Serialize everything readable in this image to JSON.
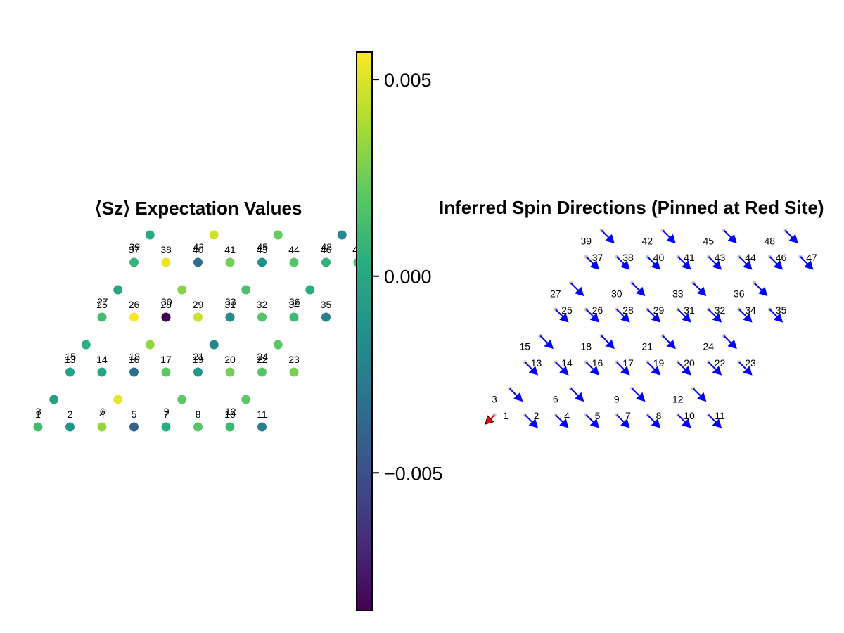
{
  "chart_data": [
    {
      "type": "scatter",
      "title": "⟨Sz⟩ Expectation Values",
      "colormap": "viridis",
      "color_range": [
        -0.0085,
        0.0056
      ],
      "sites": [
        {
          "id": 1,
          "x": 0,
          "y": 0,
          "sz": 0.0012
        },
        {
          "id": 2,
          "x": 1,
          "y": 0,
          "sz": -0.0012
        },
        {
          "id": 3,
          "x": 0.5,
          "y": 1,
          "sz": -0.0004
        },
        {
          "id": 4,
          "x": 2,
          "y": 0,
          "sz": 0.0033
        },
        {
          "id": 5,
          "x": 3,
          "y": 0,
          "sz": -0.0042
        },
        {
          "id": 6,
          "x": 2.5,
          "y": 1,
          "sz": 0.0052
        },
        {
          "id": 7,
          "x": 4,
          "y": 0,
          "sz": 0.0002
        },
        {
          "id": 8,
          "x": 5,
          "y": 0,
          "sz": 0.0018
        },
        {
          "id": 9,
          "x": 4.5,
          "y": 1,
          "sz": 0.002
        },
        {
          "id": 10,
          "x": 6,
          "y": 0,
          "sz": 0.001
        },
        {
          "id": 11,
          "x": 7,
          "y": 0,
          "sz": -0.0025
        },
        {
          "id": 12,
          "x": 6.5,
          "y": 1,
          "sz": 0.002
        },
        {
          "id": 13,
          "x": 1,
          "y": 2,
          "sz": -0.0003
        },
        {
          "id": 14,
          "x": 2,
          "y": 2,
          "sz": -0.0002
        },
        {
          "id": 15,
          "x": 1.5,
          "y": 3,
          "sz": 0.0004
        },
        {
          "id": 16,
          "x": 3,
          "y": 2,
          "sz": -0.0033
        },
        {
          "id": 17,
          "x": 4,
          "y": 2,
          "sz": 0.002
        },
        {
          "id": 18,
          "x": 3.5,
          "y": 3,
          "sz": 0.0032
        },
        {
          "id": 19,
          "x": 5,
          "y": 2,
          "sz": -0.001
        },
        {
          "id": 20,
          "x": 6,
          "y": 2,
          "sz": 0.0025
        },
        {
          "id": 21,
          "x": 5.5,
          "y": 3,
          "sz": -0.002
        },
        {
          "id": 22,
          "x": 7,
          "y": 2,
          "sz": 0.0018
        },
        {
          "id": 23,
          "x": 8,
          "y": 2,
          "sz": 0.0026
        },
        {
          "id": 24,
          "x": 7.5,
          "y": 3,
          "sz": 0.002
        },
        {
          "id": 25,
          "x": 2,
          "y": 4,
          "sz": 0.0012
        },
        {
          "id": 26,
          "x": 3,
          "y": 4,
          "sz": 0.0056
        },
        {
          "id": 27,
          "x": 2.5,
          "y": 5,
          "sz": -0.0002
        },
        {
          "id": 28,
          "x": 4,
          "y": 4,
          "sz": -0.0085
        },
        {
          "id": 29,
          "x": 5,
          "y": 4,
          "sz": 0.0045
        },
        {
          "id": 30,
          "x": 4.5,
          "y": 5,
          "sz": 0.003
        },
        {
          "id": 31,
          "x": 6,
          "y": 4,
          "sz": -0.0018
        },
        {
          "id": 32,
          "x": 7,
          "y": 4,
          "sz": 0.0018
        },
        {
          "id": 33,
          "x": 6.5,
          "y": 5,
          "sz": 0.0015
        },
        {
          "id": 34,
          "x": 8,
          "y": 4,
          "sz": 0.001
        },
        {
          "id": 35,
          "x": 9,
          "y": 4,
          "sz": -0.0025
        },
        {
          "id": 36,
          "x": 8.5,
          "y": 5,
          "sz": 0.0002
        },
        {
          "id": 37,
          "x": 3,
          "y": 6,
          "sz": 0.0008
        },
        {
          "id": 38,
          "x": 4,
          "y": 6,
          "sz": 0.0052
        },
        {
          "id": 39,
          "x": 3.5,
          "y": 7,
          "sz": 0.0
        },
        {
          "id": 40,
          "x": 5,
          "y": 6,
          "sz": -0.0035
        },
        {
          "id": 41,
          "x": 6,
          "y": 6,
          "sz": 0.0025
        },
        {
          "id": 42,
          "x": 5.5,
          "y": 7,
          "sz": 0.0046
        },
        {
          "id": 43,
          "x": 7,
          "y": 6,
          "sz": -0.0015
        },
        {
          "id": 44,
          "x": 8,
          "y": 6,
          "sz": 0.0018
        },
        {
          "id": 45,
          "x": 7.5,
          "y": 7,
          "sz": 0.0022
        },
        {
          "id": 46,
          "x": 9,
          "y": 6,
          "sz": 0.0006
        },
        {
          "id": 47,
          "x": 10,
          "y": 6,
          "sz": 0.0012
        },
        {
          "id": 48,
          "x": 9.5,
          "y": 7,
          "sz": -0.002
        }
      ]
    },
    {
      "type": "colorbar",
      "colormap": "viridis",
      "range": [
        -0.0085,
        0.0057
      ],
      "ticks": [
        0.005,
        0.0,
        -0.005
      ],
      "tick_labels": [
        "0.005",
        "0.000",
        "−0.005"
      ]
    },
    {
      "type": "quiver",
      "title": "Inferred Spin Directions (Pinned at Red Site)",
      "pinned_site": 1,
      "pinned_color": "#ff0000",
      "arrow_color": "#0000ff",
      "site_color": "#c8c8c8",
      "arrows": [
        {
          "id": 1,
          "x": 0,
          "y": 0,
          "dx": -0.22,
          "dy": -0.22
        },
        {
          "id": 2,
          "x": 1,
          "y": 0,
          "dx": 0.3,
          "dy": -0.3
        },
        {
          "id": 3,
          "x": 0.5,
          "y": 1,
          "dx": 0.3,
          "dy": -0.3
        },
        {
          "id": 4,
          "x": 2,
          "y": 0,
          "dx": 0.3,
          "dy": -0.3
        },
        {
          "id": 5,
          "x": 3,
          "y": 0,
          "dx": 0.3,
          "dy": -0.3
        },
        {
          "id": 6,
          "x": 2.5,
          "y": 1,
          "dx": 0.3,
          "dy": -0.3
        },
        {
          "id": 7,
          "x": 4,
          "y": 0,
          "dx": 0.3,
          "dy": -0.3
        },
        {
          "id": 8,
          "x": 5,
          "y": 0,
          "dx": 0.3,
          "dy": -0.3
        },
        {
          "id": 9,
          "x": 4.5,
          "y": 1,
          "dx": 0.3,
          "dy": -0.3
        },
        {
          "id": 10,
          "x": 6,
          "y": 0,
          "dx": 0.3,
          "dy": -0.3
        },
        {
          "id": 11,
          "x": 7,
          "y": 0,
          "dx": 0.3,
          "dy": -0.3
        },
        {
          "id": 12,
          "x": 6.5,
          "y": 1,
          "dx": 0.3,
          "dy": -0.3
        },
        {
          "id": 13,
          "x": 1,
          "y": 2,
          "dx": 0.3,
          "dy": -0.3
        },
        {
          "id": 14,
          "x": 2,
          "y": 2,
          "dx": 0.3,
          "dy": -0.3
        },
        {
          "id": 15,
          "x": 1.5,
          "y": 3,
          "dx": 0.3,
          "dy": -0.3
        },
        {
          "id": 16,
          "x": 3,
          "y": 2,
          "dx": 0.3,
          "dy": -0.3
        },
        {
          "id": 17,
          "x": 4,
          "y": 2,
          "dx": 0.3,
          "dy": -0.3
        },
        {
          "id": 18,
          "x": 3.5,
          "y": 3,
          "dx": 0.3,
          "dy": -0.3
        },
        {
          "id": 19,
          "x": 5,
          "y": 2,
          "dx": 0.3,
          "dy": -0.3
        },
        {
          "id": 20,
          "x": 6,
          "y": 2,
          "dx": 0.3,
          "dy": -0.3
        },
        {
          "id": 21,
          "x": 5.5,
          "y": 3,
          "dx": 0.3,
          "dy": -0.3
        },
        {
          "id": 22,
          "x": 7,
          "y": 2,
          "dx": 0.3,
          "dy": -0.3
        },
        {
          "id": 23,
          "x": 8,
          "y": 2,
          "dx": 0.3,
          "dy": -0.3
        },
        {
          "id": 24,
          "x": 7.5,
          "y": 3,
          "dx": 0.3,
          "dy": -0.3
        },
        {
          "id": 25,
          "x": 2,
          "y": 4,
          "dx": 0.3,
          "dy": -0.3
        },
        {
          "id": 26,
          "x": 3,
          "y": 4,
          "dx": 0.3,
          "dy": -0.3
        },
        {
          "id": 27,
          "x": 2.5,
          "y": 5,
          "dx": 0.3,
          "dy": -0.3
        },
        {
          "id": 28,
          "x": 4,
          "y": 4,
          "dx": 0.3,
          "dy": -0.3
        },
        {
          "id": 29,
          "x": 5,
          "y": 4,
          "dx": 0.3,
          "dy": -0.3
        },
        {
          "id": 30,
          "x": 4.5,
          "y": 5,
          "dx": 0.3,
          "dy": -0.3
        },
        {
          "id": 31,
          "x": 6,
          "y": 4,
          "dx": 0.3,
          "dy": -0.3
        },
        {
          "id": 32,
          "x": 7,
          "y": 4,
          "dx": 0.3,
          "dy": -0.3
        },
        {
          "id": 33,
          "x": 6.5,
          "y": 5,
          "dx": 0.3,
          "dy": -0.3
        },
        {
          "id": 34,
          "x": 8,
          "y": 4,
          "dx": 0.3,
          "dy": -0.3
        },
        {
          "id": 35,
          "x": 9,
          "y": 4,
          "dx": 0.3,
          "dy": -0.3
        },
        {
          "id": 36,
          "x": 8.5,
          "y": 5,
          "dx": 0.3,
          "dy": -0.3
        },
        {
          "id": 37,
          "x": 3,
          "y": 6,
          "dx": 0.3,
          "dy": -0.3
        },
        {
          "id": 38,
          "x": 4,
          "y": 6,
          "dx": 0.3,
          "dy": -0.3
        },
        {
          "id": 39,
          "x": 3.5,
          "y": 7,
          "dx": 0.3,
          "dy": -0.3
        },
        {
          "id": 40,
          "x": 5,
          "y": 6,
          "dx": 0.3,
          "dy": -0.3
        },
        {
          "id": 41,
          "x": 6,
          "y": 6,
          "dx": 0.3,
          "dy": -0.3
        },
        {
          "id": 42,
          "x": 5.5,
          "y": 7,
          "dx": 0.3,
          "dy": -0.3
        },
        {
          "id": 43,
          "x": 7,
          "y": 6,
          "dx": 0.3,
          "dy": -0.3
        },
        {
          "id": 44,
          "x": 8,
          "y": 6,
          "dx": 0.3,
          "dy": -0.3
        },
        {
          "id": 45,
          "x": 7.5,
          "y": 7,
          "dx": 0.3,
          "dy": -0.3
        },
        {
          "id": 46,
          "x": 9,
          "y": 6,
          "dx": 0.3,
          "dy": -0.3
        },
        {
          "id": 47,
          "x": 10,
          "y": 6,
          "dx": 0.3,
          "dy": -0.3
        },
        {
          "id": 48,
          "x": 9.5,
          "y": 7,
          "dx": 0.3,
          "dy": -0.3
        }
      ]
    }
  ]
}
